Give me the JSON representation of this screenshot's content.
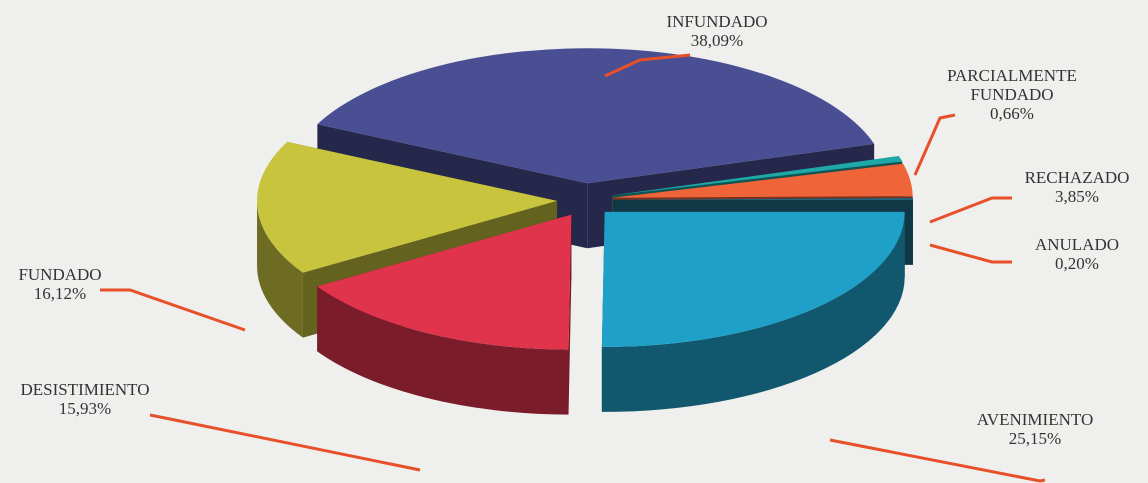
{
  "chart_data": {
    "type": "pie",
    "categories": [
      "INFUNDADO",
      "PARCIALMENTE FUNDADO",
      "RECHAZADO",
      "ANULADO",
      "AVENIMIENTO",
      "DESISTIMIENTO",
      "FUNDADO"
    ],
    "values": [
      38.09,
      0.66,
      3.85,
      0.2,
      25.15,
      15.93,
      16.12
    ],
    "value_labels": [
      "38,09%",
      "0,66%",
      "3,85%",
      "0,20%",
      "25,15%",
      "15,93%",
      "16,12%"
    ],
    "colors": [
      "#4a4f94",
      "#1fa8a8",
      "#f0643a",
      "#1f6e8c",
      "#1fa0c8",
      "#e0334c",
      "#c8c43e"
    ]
  }
}
